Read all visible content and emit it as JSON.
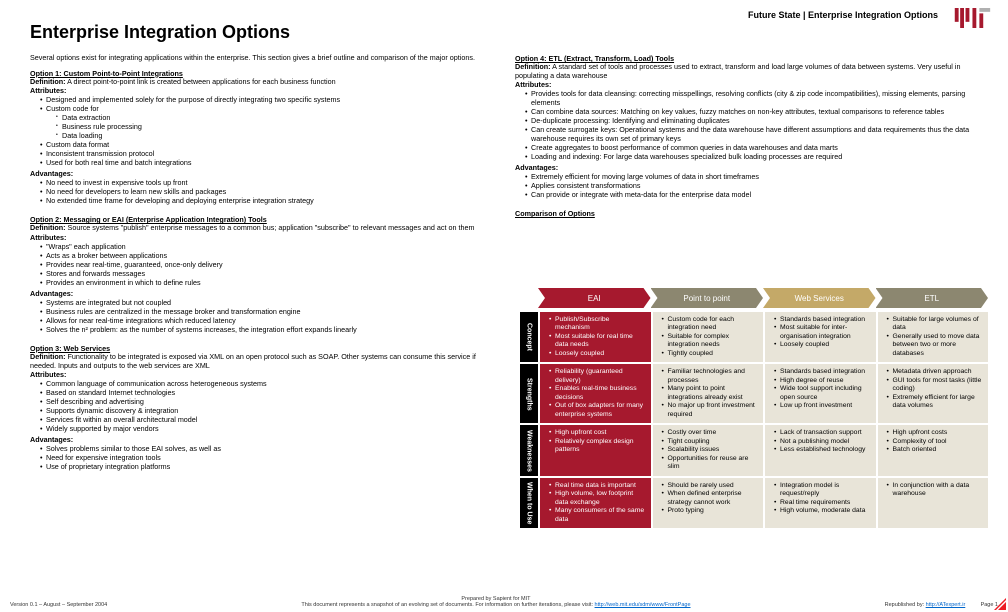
{
  "colors": {
    "mit_red": "#a6192e",
    "mit_light": "#b0b0b0",
    "tan": "#e8e4d8",
    "olive": "#8c8770",
    "black": "#000000",
    "cell_red": "#a6192e",
    "cell_tan": "#e8e4d8",
    "page_corner": "#ed1c24"
  },
  "header": "Future State | Enterprise Integration Options",
  "title": "Enterprise Integration Options",
  "intro": "Several options exist for integrating applications within the enterprise. This section gives a brief outline and comparison of the major options.",
  "options": {
    "o1": {
      "title": "Option 1: Custom Point-to-Point Integrations",
      "definition": "A direct point-to-point link is created between applications for each business function",
      "attributes": [
        "Designed and implemented solely for the purpose of directly integrating two specific systems",
        "Custom code for",
        "Custom data format",
        "Inconsistent transmission protocol",
        "Used for both real time and batch integrations"
      ],
      "sub_custom": [
        "Data extraction",
        "Business rule processing",
        "Data loading"
      ],
      "advantages": [
        "No need to invest in expensive tools up front",
        "No need for developers to learn new skills and packages",
        "No extended time frame for developing and deploying enterprise integration strategy"
      ]
    },
    "o2": {
      "title": "Option 2: Messaging or EAI (Enterprise Application Integration) Tools",
      "definition": "Source systems \"publish\" enterprise messages to a common bus; application \"subscribe\" to relevant messages and act on them",
      "attributes": [
        "\"Wraps\" each application",
        "Acts as a broker between applications",
        "Provides near real-time, guaranteed, once-only delivery",
        "Stores and forwards messages",
        "Provides an environment in which to define rules"
      ],
      "advantages": [
        "Systems are integrated but not coupled",
        "Business rules are centralized in the message broker and transformation engine",
        "Allows for near real-time integrations which reduced latency",
        "Solves the n² problem: as the number of systems increases, the integration effort expands linearly"
      ]
    },
    "o3": {
      "title": "Option 3: Web Services",
      "definition": "Functionality to be integrated is exposed via XML on an open protocol such as SOAP. Other systems can consume this service if needed. Inputs and outputs to the web services are XML",
      "attributes": [
        "Common language of communication across heterogeneous systems",
        "Based on standard Internet technologies",
        "Self describing and advertising",
        "Supports dynamic discovery & integration",
        "Services fit within an overall architectural model",
        "Widely supported by major vendors"
      ],
      "advantages": [
        "Solves problems similar to those EAI solves, as well as",
        "Need for expensive integration tools",
        "Use of proprietary integration platforms"
      ]
    },
    "o4": {
      "title": "Option 4: ETL (Extract, Transform, Load) Tools",
      "definition": "A standard set of tools and processes used to extract, transform and load large volumes of data between systems. Very useful in populating a data warehouse",
      "attributes": [
        "Provides tools for data cleansing: correcting misspellings, resolving conflicts (city & zip code incompatibilities), missing elements, parsing elements",
        "Can combine data sources: Matching on key values, fuzzy matches on non-key attributes, textual comparisons to reference tables",
        "De-duplicate processing: Identifying and eliminating duplicates",
        "Can create surrogate keys: Operational systems and the data warehouse have different assumptions and data requirements thus the data warehouse requires its own set of primary keys",
        "Create aggregates to boost performance of common queries in data warehouses and data marts",
        "Loading and indexing: For large data warehouses specialized bulk loading processes are required"
      ],
      "advantages": [
        "Extremely efficient for moving large volumes of data in short timeframes",
        "Applies consistent transformations",
        "Can provide or integrate with meta-data for the enterprise data model"
      ]
    }
  },
  "comparison": {
    "title": "Comparison of Options",
    "headers": [
      "EAI",
      "Point to point",
      "Web Services",
      "ETL"
    ],
    "header_colors": [
      "#a6192e",
      "#8c8770",
      "#c4a968",
      "#8c8770"
    ],
    "rows": [
      {
        "label": "Concept",
        "cells": [
          [
            "Publish/Subscribe mechanism",
            "Most suitable for real time data needs",
            "Loosely coupled"
          ],
          [
            "Custom code for each integration need",
            "Suitable for complex integration needs",
            "Tightly coupled"
          ],
          [
            "Standards based integration",
            "Most suitable for inter-organisation integration",
            "Loosely coupled"
          ],
          [
            "Suitable for large volumes of data",
            "Generally used to move data between two or more databases"
          ]
        ],
        "styles": [
          "red",
          "tan",
          "tan",
          "tan"
        ]
      },
      {
        "label": "Strengths",
        "cells": [
          [
            "Reliability (guaranteed delivery)",
            "Enables real-time business decisions",
            "Out of box adapters for many enterprise systems"
          ],
          [
            "Familiar technologies and processes",
            "Many point to point integrations already exist",
            "No major up front investment required"
          ],
          [
            "Standards based integration",
            "High degree of reuse",
            "Wide tool support including open source",
            "Low up front investment"
          ],
          [
            "Metadata driven approach",
            "GUI tools for most tasks (little coding)",
            "Extremely efficient for large data volumes"
          ]
        ],
        "styles": [
          "red",
          "tan",
          "tan",
          "tan"
        ]
      },
      {
        "label": "Weaknesses",
        "cells": [
          [
            "High upfront cost",
            "Relatively complex design patterns"
          ],
          [
            "Costly over time",
            "Tight coupling",
            "Scalability issues",
            "Opportunities for reuse are slim"
          ],
          [
            "Lack of transaction support",
            "Not a publishing model",
            "Less established technology"
          ],
          [
            "High upfront costs",
            "Complexity of tool",
            "Batch oriented"
          ]
        ],
        "styles": [
          "red",
          "tan",
          "tan",
          "tan"
        ]
      },
      {
        "label": "When to Use",
        "cells": [
          [
            "Real time data is important",
            "High volume, low footprint data exchange",
            "Many consumers of the same data"
          ],
          [
            "Should be rarely used",
            "When defined enterprise strategy cannot work",
            "Proto typing"
          ],
          [
            "Integration model is request/reply",
            "Real time requirements",
            "High volume, moderate data"
          ],
          [
            "In conjunction with a data warehouse"
          ]
        ],
        "styles": [
          "red",
          "tan",
          "tan",
          "tan"
        ]
      }
    ]
  },
  "footer": {
    "version": "Version 0.1 – August – September 2004",
    "prepared": "Prepared by Sapient for MIT",
    "note_pre": "This document represents a snapshot of an evolving set of documents. For information on further iterations, please visit: ",
    "note_link": "http://web.mit.edu/sdm/www/FrontPage",
    "republished_pre": "Republished by: ",
    "republished_link": "http://ATexpert.ir",
    "page": "Page 1"
  },
  "labels": {
    "definition": "Definition:",
    "attributes": "Attributes:",
    "advantages": "Advantages:"
  }
}
